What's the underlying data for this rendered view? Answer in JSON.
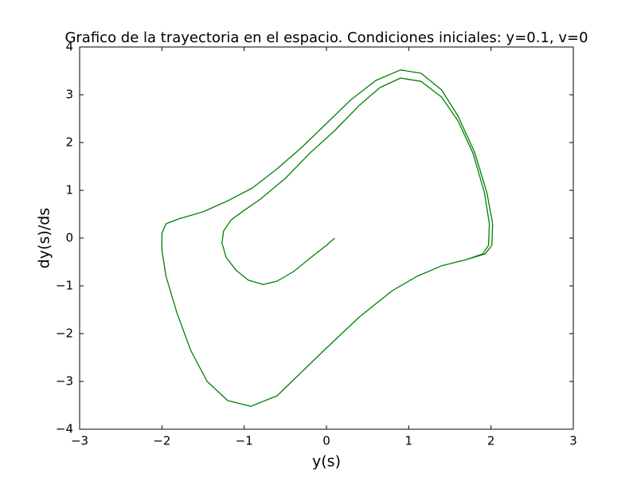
{
  "chart_data": {
    "type": "line",
    "title": "Grafico de la trayectoria en el espacio. Condiciones iniciales: y=0.1, v=0",
    "x_label": "y(s)",
    "y_label": "dy(s)/ds",
    "xlim": [
      -3,
      3
    ],
    "ylim": [
      -4,
      4
    ],
    "xticks": [
      {
        "value": -3,
        "label": "−3"
      },
      {
        "value": -2,
        "label": "−2"
      },
      {
        "value": -1,
        "label": "−1"
      },
      0,
      1,
      2,
      3
    ],
    "yticks": [
      {
        "value": -4,
        "label": "−4"
      },
      {
        "value": -3,
        "label": "−3"
      },
      {
        "value": -2,
        "label": "−2"
      },
      {
        "value": -1,
        "label": "−1"
      },
      0,
      1,
      2,
      3,
      4
    ],
    "grid": false,
    "series": [
      {
        "color": "#008000",
        "x": [
          0.1,
          0.0,
          -0.2,
          -0.4,
          -0.6,
          -0.77,
          -0.95,
          -1.1,
          -1.22,
          -1.27,
          -1.25,
          -1.16,
          -1.0,
          -0.8,
          -0.5,
          -0.2,
          0.1,
          0.4,
          0.65,
          0.9,
          1.15,
          1.4,
          1.6,
          1.78,
          1.92,
          1.98,
          1.97,
          1.9,
          1.7,
          1.4,
          1.1,
          0.8,
          0.4,
          0.0,
          -0.3,
          -0.6,
          -0.92,
          -1.2,
          -1.45,
          -1.65,
          -1.82,
          -1.95,
          -2.0,
          -2.0,
          -1.95,
          -1.8,
          -1.5,
          -1.2,
          -0.9,
          -0.6,
          -0.3,
          0.0,
          0.3,
          0.6,
          0.9,
          1.15,
          1.4,
          1.6,
          1.8,
          1.95,
          2.02,
          2.01,
          1.93,
          1.7,
          1.4,
          1.1,
          0.8,
          0.4,
          0.0,
          -0.3,
          -0.6,
          -0.92,
          -1.2,
          -1.45,
          -1.65,
          -1.82,
          -1.95,
          -2.0,
          -2.0,
          -1.95,
          -1.8
        ],
        "values": [
          0,
          -0.15,
          -0.42,
          -0.7,
          -0.9,
          -0.97,
          -0.88,
          -0.67,
          -0.4,
          -0.1,
          0.15,
          0.38,
          0.58,
          0.82,
          1.25,
          1.78,
          2.25,
          2.78,
          3.15,
          3.35,
          3.28,
          2.95,
          2.45,
          1.78,
          0.95,
          0.3,
          -0.15,
          -0.33,
          -0.45,
          -0.58,
          -0.8,
          -1.1,
          -1.65,
          -2.3,
          -2.8,
          -3.3,
          -3.52,
          -3.4,
          -3.0,
          -2.35,
          -1.55,
          -0.8,
          -0.25,
          0.1,
          0.3,
          0.4,
          0.55,
          0.78,
          1.05,
          1.45,
          1.9,
          2.4,
          2.9,
          3.3,
          3.52,
          3.45,
          3.1,
          2.55,
          1.8,
          0.95,
          0.3,
          -0.15,
          -0.33,
          -0.45,
          -0.58,
          -0.8,
          -1.1,
          -1.65,
          -2.3,
          -2.8,
          -3.3,
          -3.52,
          -3.4,
          -3.0,
          -2.35,
          -1.55,
          -0.8,
          -0.25,
          0.1,
          0.3,
          0.4
        ]
      }
    ]
  }
}
